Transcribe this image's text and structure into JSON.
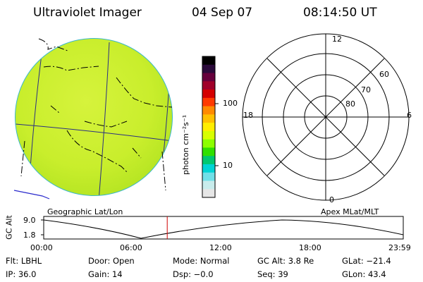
{
  "header": {
    "instrument": "Ultraviolet Imager",
    "date": "04 Sep 07",
    "time": "08:14:50 UT"
  },
  "colorbar": {
    "unit_label": "photon cm⁻²s⁻¹",
    "tick_100": "100",
    "tick_10": "10",
    "scale": "log",
    "colors_top_to_bottom": [
      "#000000",
      "#2a0a3a",
      "#66003c",
      "#a0002a",
      "#d40000",
      "#ff3a00",
      "#ff8a00",
      "#ffc000",
      "#ffee00",
      "#d8ff00",
      "#8cff00",
      "#30e000",
      "#00c870",
      "#00d4d4",
      "#70e0e8",
      "#c8ecec",
      "#e6e6e6"
    ]
  },
  "left_panel": {
    "caption": "Geographic Lat/Lon",
    "image_color": "#ccef2e"
  },
  "polar": {
    "caption": "Apex MLat/MLT",
    "mlt_top": "12",
    "mlt_left": "18",
    "mlt_right": "6",
    "mlt_bottom": "0",
    "lat_labels": [
      "60",
      "70",
      "80"
    ]
  },
  "timeline": {
    "y_label": "GC Alt",
    "y_max": "9.0",
    "y_min": "1.8",
    "x_ticks": [
      "00:00",
      "06:00",
      "12:00",
      "18:00",
      "23:59"
    ],
    "current_time_fraction": 0.3436,
    "marker_color": "#d00000"
  },
  "info": {
    "filter": "Flt: LBHL",
    "door": "Door: Open",
    "mode": "Mode: Normal",
    "gc_alt": "GC Alt: 3.8 Re",
    "glat": "GLat: −21.4",
    "ip": "IP: 36.0",
    "gain": "Gain: 14",
    "dsp": "Dsp:   −0.0",
    "seq": "Seq: 39",
    "glon": "GLon:  43.4"
  }
}
